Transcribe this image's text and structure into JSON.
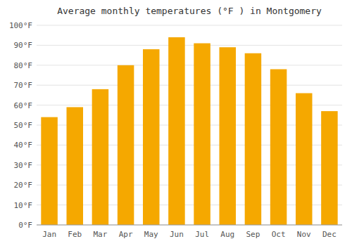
{
  "chart_data": {
    "type": "bar",
    "title": "Average monthly temperatures (°F ) in Montgomery",
    "categories": [
      "Jan",
      "Feb",
      "Mar",
      "Apr",
      "May",
      "Jun",
      "Jul",
      "Aug",
      "Sep",
      "Oct",
      "Nov",
      "Dec"
    ],
    "values": [
      54,
      59,
      68,
      80,
      88,
      94,
      91,
      89,
      86,
      78,
      66,
      57
    ],
    "color": "#F5A800",
    "ylim": [
      0,
      100
    ],
    "yticks": [
      {
        "value": 0,
        "label": "0°F"
      },
      {
        "value": 10,
        "label": "10°F"
      },
      {
        "value": 20,
        "label": "20°F"
      },
      {
        "value": 30,
        "label": "30°F"
      },
      {
        "value": 40,
        "label": "40°F"
      },
      {
        "value": 50,
        "label": "50°F"
      },
      {
        "value": 60,
        "label": "60°F"
      },
      {
        "value": 70,
        "label": "70°F"
      },
      {
        "value": 80,
        "label": "80°F"
      },
      {
        "value": 90,
        "label": "90°F"
      },
      {
        "value": 100,
        "label": "100°F"
      }
    ],
    "grid": true
  }
}
